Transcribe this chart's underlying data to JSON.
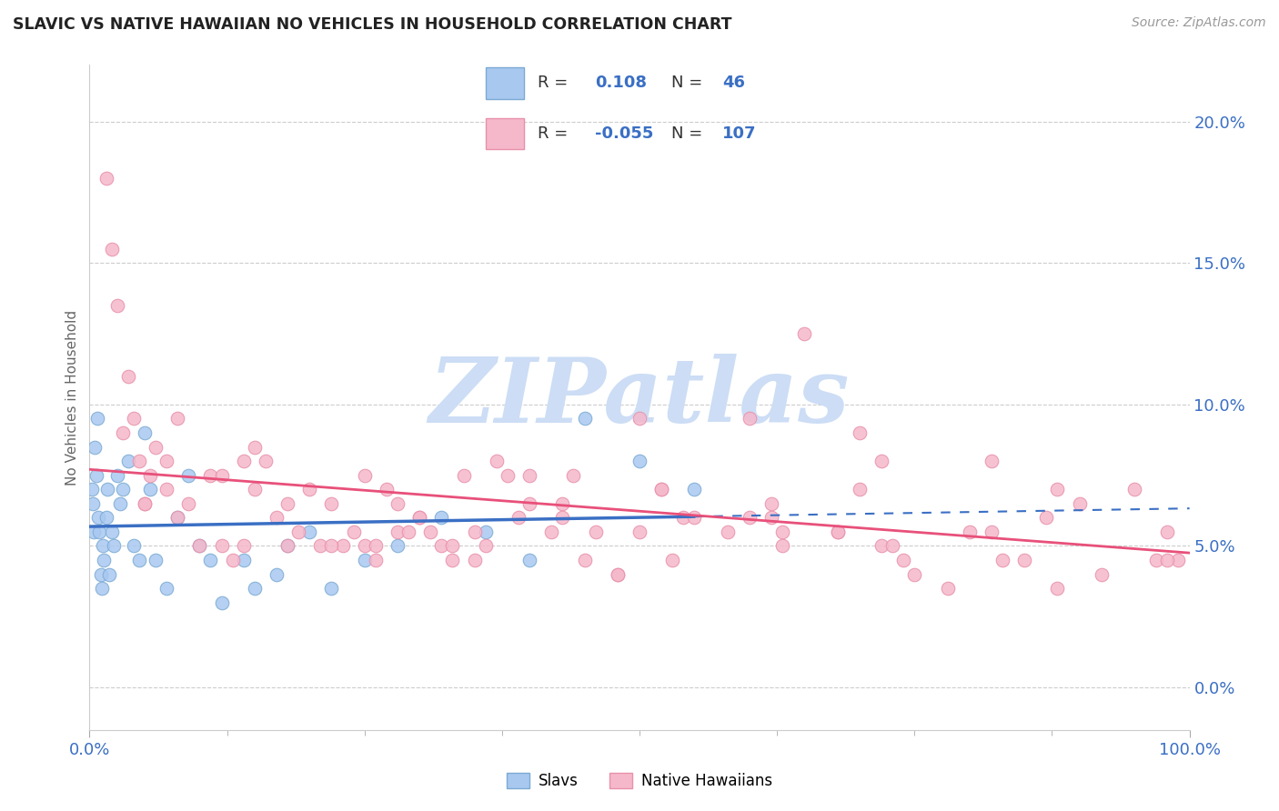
{
  "title": "SLAVIC VS NATIVE HAWAIIAN NO VEHICLES IN HOUSEHOLD CORRELATION CHART",
  "source": "Source: ZipAtlas.com",
  "ylabel": "No Vehicles in Household",
  "xlim": [
    0.0,
    100.0
  ],
  "ylim": [
    -1.5,
    22.0
  ],
  "yticks": [
    0.0,
    5.0,
    10.0,
    15.0,
    20.0
  ],
  "slavs_R": 0.108,
  "slavs_N": 46,
  "hawaiians_R": -0.055,
  "hawaiians_N": 107,
  "slavs_color": "#a8c8f0",
  "slavs_edge_color": "#7baad4",
  "hawaiians_color": "#f5b8cb",
  "hawaiians_edge_color": "#e890aa",
  "trend_slavs_color": "#3a6fc4",
  "trend_hawaiians_color": "#e8507a",
  "watermark_text": "ZIPatlas",
  "watermark_color": "#ccddf5",
  "legend_R_color": "#3a6fc4",
  "legend_N_color": "#3a6fc4",
  "tick_color": "#3a6fc4",
  "grid_color": "#cccccc",
  "title_color": "#222222",
  "source_color": "#999999",
  "ylabel_color": "#666666",
  "slavs_x": [
    0.2,
    0.3,
    0.4,
    0.5,
    0.6,
    0.7,
    0.8,
    0.9,
    1.0,
    1.1,
    1.2,
    1.3,
    1.5,
    1.6,
    1.8,
    2.0,
    2.2,
    2.5,
    2.8,
    3.0,
    3.5,
    4.0,
    4.5,
    5.0,
    5.5,
    6.0,
    7.0,
    8.0,
    9.0,
    10.0,
    11.0,
    12.0,
    14.0,
    15.0,
    17.0,
    18.0,
    20.0,
    22.0,
    25.0,
    28.0,
    32.0,
    36.0,
    40.0,
    45.0,
    50.0,
    55.0
  ],
  "slavs_y": [
    7.0,
    6.5,
    5.5,
    8.5,
    7.5,
    9.5,
    6.0,
    5.5,
    4.0,
    3.5,
    5.0,
    4.5,
    6.0,
    7.0,
    4.0,
    5.5,
    5.0,
    7.5,
    6.5,
    7.0,
    8.0,
    5.0,
    4.5,
    9.0,
    7.0,
    4.5,
    3.5,
    6.0,
    7.5,
    5.0,
    4.5,
    3.0,
    4.5,
    3.5,
    4.0,
    5.0,
    5.5,
    3.5,
    4.5,
    5.0,
    6.0,
    5.5,
    4.5,
    9.5,
    8.0,
    7.0
  ],
  "hawaiians_x": [
    1.5,
    2.0,
    2.5,
    3.0,
    3.5,
    4.0,
    4.5,
    5.0,
    5.5,
    6.0,
    7.0,
    8.0,
    9.0,
    10.0,
    11.0,
    12.0,
    13.0,
    14.0,
    15.0,
    16.0,
    17.0,
    18.0,
    19.0,
    20.0,
    21.0,
    22.0,
    23.0,
    24.0,
    25.0,
    26.0,
    27.0,
    28.0,
    29.0,
    30.0,
    31.0,
    32.0,
    33.0,
    34.0,
    35.0,
    36.0,
    37.0,
    38.0,
    39.0,
    40.0,
    42.0,
    44.0,
    45.0,
    46.0,
    48.0,
    50.0,
    52.0,
    54.0,
    55.0,
    58.0,
    60.0,
    62.0,
    63.0,
    65.0,
    68.0,
    70.0,
    72.0,
    74.0,
    75.0,
    78.0,
    80.0,
    82.0,
    85.0,
    87.0,
    88.0,
    90.0,
    92.0,
    95.0,
    97.0,
    98.0,
    99.0,
    22.0,
    30.0,
    40.0,
    50.0,
    60.0,
    70.0,
    5.0,
    8.0,
    12.0,
    18.0,
    26.0,
    35.0,
    43.0,
    52.0,
    62.0,
    72.0,
    82.0,
    14.0,
    28.0,
    48.0,
    68.0,
    88.0,
    98.0,
    33.0,
    43.0,
    53.0,
    63.0,
    73.0,
    83.0,
    7.0,
    15.0,
    25.0
  ],
  "hawaiians_y": [
    18.0,
    15.5,
    13.5,
    9.0,
    11.0,
    9.5,
    8.0,
    6.5,
    7.5,
    8.5,
    7.0,
    9.5,
    6.5,
    5.0,
    7.5,
    5.0,
    4.5,
    5.0,
    7.0,
    8.0,
    6.0,
    5.0,
    5.5,
    7.0,
    5.0,
    6.5,
    5.0,
    5.5,
    5.0,
    4.5,
    7.0,
    5.5,
    5.5,
    6.0,
    5.5,
    5.0,
    4.5,
    7.5,
    5.5,
    5.0,
    8.0,
    7.5,
    6.0,
    6.5,
    5.5,
    7.5,
    4.5,
    5.5,
    4.0,
    9.5,
    7.0,
    6.0,
    6.0,
    5.5,
    6.0,
    6.5,
    5.0,
    12.5,
    5.5,
    9.0,
    8.0,
    4.5,
    4.0,
    3.5,
    5.5,
    8.0,
    4.5,
    6.0,
    3.5,
    6.5,
    4.0,
    7.0,
    4.5,
    5.5,
    4.5,
    5.0,
    6.0,
    7.5,
    5.5,
    9.5,
    7.0,
    6.5,
    6.0,
    7.5,
    6.5,
    5.0,
    4.5,
    6.5,
    7.0,
    6.0,
    5.0,
    5.5,
    8.0,
    6.5,
    4.0,
    5.5,
    7.0,
    4.5,
    5.0,
    6.0,
    4.5,
    5.5,
    5.0,
    4.5,
    8.0,
    8.5,
    7.5
  ]
}
